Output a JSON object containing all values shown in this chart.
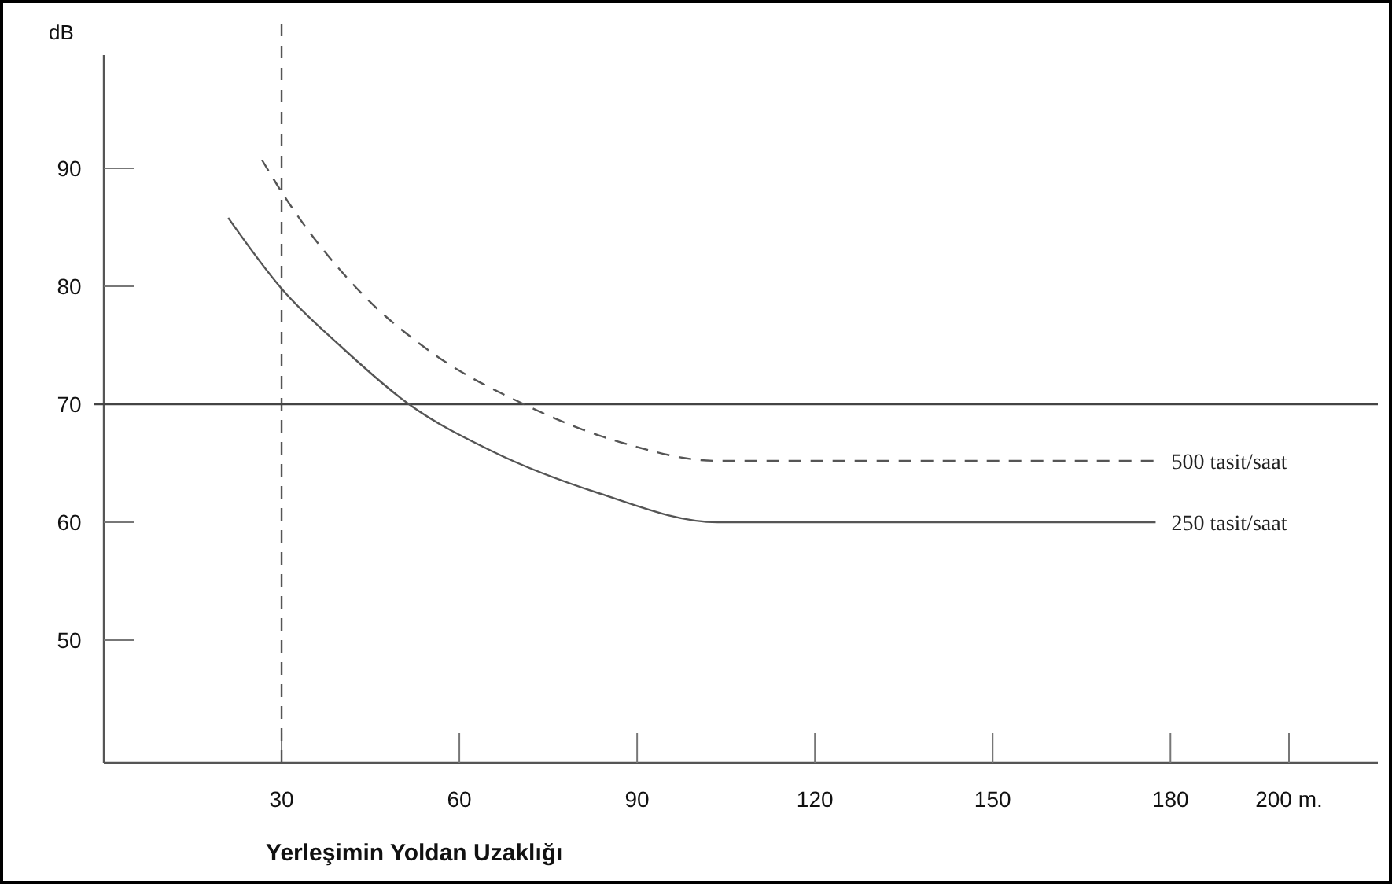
{
  "chart_data": {
    "type": "line",
    "ylabel": "dB",
    "xlabel": "Yerleşimin Yoldan Uzaklığı",
    "xlim": [
      0,
      215
    ],
    "ylim": [
      39.6,
      99.6
    ],
    "xticks": [
      30,
      60,
      90,
      120,
      150,
      180,
      {
        "value": 200,
        "label": "200 m."
      }
    ],
    "yticks": [
      50,
      60,
      70,
      80,
      90
    ],
    "grid": false,
    "series": [
      {
        "name": "500 tasit/saat",
        "color": "#555555",
        "line_style": "dashed",
        "x": [
          26.7,
          30,
          43.5,
          55,
          70.9,
          87.7,
          103.6,
          177.5
        ],
        "values": [
          90.7,
          88.0,
          79.4,
          74.5,
          70,
          66.7,
          65.2,
          65.2
        ]
      },
      {
        "name": "250 tasit/saat",
        "color": "#555555",
        "line_style": "solid",
        "x": [
          21,
          30,
          40,
          51.5,
          65.6,
          83.3,
          103.6,
          177.5
        ],
        "values": [
          85.8,
          79.8,
          74.9,
          70,
          66.0,
          62.5,
          60.0,
          60.0
        ]
      }
    ],
    "ref_lines": [
      {
        "axis": "x",
        "value": 30,
        "line_style": "dashed",
        "color": "#555555"
      },
      {
        "axis": "y",
        "value": 70,
        "line_style": "solid",
        "color": "#444444"
      }
    ]
  }
}
